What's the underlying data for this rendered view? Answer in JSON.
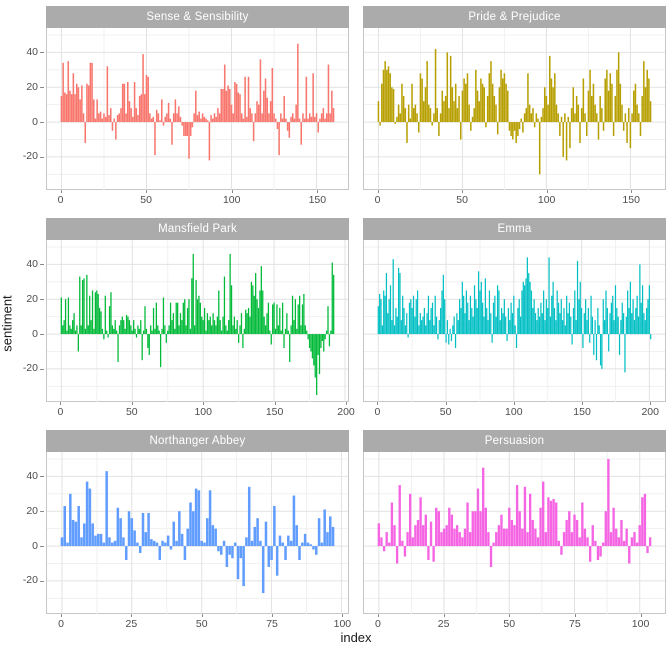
{
  "axes": {
    "x_title": "index",
    "y_title": "sentiment",
    "y_ticks": [
      -20,
      0,
      20,
      40
    ],
    "y_minor_ticks": [
      -30,
      -10,
      10,
      30,
      50
    ],
    "ylim": [
      -39,
      54
    ]
  },
  "style": {
    "strip_bg": "#ababab",
    "strip_text": "#ffffff",
    "panel_border": "#c6c6c6",
    "grid_major": "#e2e2e2",
    "grid_minor": "#f1f1f1",
    "tick_mark": "#8a8a8a",
    "tick_label": "#4d4d4d"
  },
  "chart_data": {
    "type": "bar",
    "facet_by": "book",
    "ncol": 2,
    "xlabel": "index",
    "ylabel": "sentiment",
    "legend": "none",
    "grid": "on",
    "facets": [
      {
        "title": "Sense & Sensibility",
        "color": "#F8766D",
        "x_ticks": [
          0,
          50,
          100,
          150
        ],
        "values": [
          15,
          34,
          17,
          16,
          35,
          18,
          16,
          28,
          16,
          22,
          20,
          13,
          21,
          5,
          -12,
          22,
          21,
          34,
          34,
          13,
          2,
          13,
          5,
          6,
          2,
          5,
          3,
          32,
          4,
          8,
          -5,
          2,
          -10,
          4,
          5,
          8,
          22,
          22,
          5,
          23,
          12,
          8,
          3,
          23,
          8,
          4,
          15,
          16,
          39,
          16,
          27,
          26,
          5,
          2,
          3,
          -19,
          7,
          5,
          1,
          13,
          -2,
          3,
          5,
          11,
          2,
          -13,
          5,
          13,
          5,
          9,
          3,
          -2,
          -8,
          -8,
          -8,
          -21,
          -8,
          -3,
          5,
          18,
          4,
          6,
          2,
          5,
          3,
          2,
          1,
          -22,
          4,
          2,
          5,
          3,
          8,
          5,
          19,
          19,
          33,
          18,
          21,
          19,
          10,
          5,
          23,
          22,
          17,
          16,
          5,
          2,
          26,
          3,
          26,
          8,
          5,
          -11,
          5,
          12,
          10,
          36,
          5,
          18,
          25,
          14,
          5,
          12,
          31,
          5,
          2,
          -4,
          -19,
          5,
          2,
          15,
          2,
          -5,
          -9,
          3,
          5,
          2,
          10,
          45,
          2,
          -13,
          5,
          2,
          26,
          2,
          5,
          3,
          28,
          3,
          5,
          -6,
          2,
          5,
          8,
          2,
          5,
          33,
          5,
          18,
          8
        ]
      },
      {
        "title": "Pride & Prejudice",
        "color": "#B79F00",
        "x_ticks": [
          0,
          50,
          100,
          150
        ],
        "values": [
          12,
          -2,
          22,
          30,
          35,
          30,
          32,
          28,
          20,
          19,
          -1,
          3,
          10,
          5,
          22,
          15,
          8,
          -12,
          10,
          2,
          22,
          8,
          10,
          5,
          -6,
          28,
          25,
          12,
          20,
          35,
          10,
          8,
          -2,
          5,
          42,
          8,
          -8,
          5,
          18,
          12,
          15,
          40,
          8,
          38,
          20,
          12,
          22,
          8,
          15,
          -10,
          18,
          25,
          22,
          28,
          10,
          -5,
          3,
          8,
          30,
          18,
          12,
          25,
          22,
          20,
          -3,
          15,
          28,
          35,
          22,
          15,
          10,
          -7,
          20,
          30,
          25,
          28,
          22,
          18,
          -5,
          -8,
          -10,
          -5,
          -12,
          -8,
          -4,
          2,
          -6,
          5,
          8,
          28,
          10,
          5,
          8,
          -3,
          5,
          2,
          -30,
          3,
          8,
          20,
          15,
          10,
          38,
          25,
          20,
          28,
          10,
          5,
          -8,
          3,
          -20,
          5,
          -22,
          3,
          -15,
          8,
          20,
          5,
          15,
          10,
          -12,
          8,
          25,
          5,
          -8,
          18,
          30,
          15,
          22,
          10,
          5,
          -10,
          15,
          8,
          -5,
          25,
          30,
          18,
          28,
          22,
          -8,
          15,
          30,
          40,
          22,
          10,
          -5,
          5,
          -12,
          8,
          -15,
          5,
          18,
          22,
          10,
          5,
          -8,
          15,
          35,
          20,
          30,
          25,
          12
        ]
      },
      {
        "title": "Mansfield Park",
        "color": "#00BA38",
        "x_ticks": [
          0,
          50,
          100,
          150,
          200
        ],
        "values": [
          21,
          5,
          8,
          20,
          2,
          21,
          5,
          3,
          8,
          12,
          2,
          5,
          -10,
          33,
          5,
          31,
          32,
          3,
          34,
          5,
          22,
          8,
          25,
          3,
          24,
          25,
          23,
          15,
          13,
          3,
          -3,
          22,
          2,
          -2,
          16,
          24,
          5,
          3,
          8,
          2,
          -16,
          5,
          8,
          10,
          8,
          3,
          11,
          10,
          8,
          5,
          2,
          8,
          3,
          -2,
          5,
          3,
          8,
          -15,
          2,
          16,
          3,
          -8,
          -12,
          5,
          2,
          15,
          3,
          18,
          5,
          2,
          -19,
          3,
          21,
          5,
          -5,
          2,
          5,
          18,
          8,
          12,
          3,
          18,
          18,
          5,
          12,
          8,
          18,
          20,
          5,
          15,
          20,
          3,
          32,
          46,
          5,
          31,
          20,
          22,
          18,
          10,
          8,
          15,
          2,
          12,
          8,
          10,
          5,
          12,
          8,
          5,
          10,
          25,
          8,
          2,
          10,
          33,
          5,
          2,
          8,
          46,
          28,
          5,
          10,
          3,
          8,
          -5,
          5,
          12,
          -8,
          3,
          14,
          12,
          15,
          10,
          30,
          28,
          22,
          35,
          20,
          15,
          25,
          39,
          25,
          10,
          5,
          12,
          18,
          2,
          -6,
          17,
          18,
          3,
          17,
          5,
          15,
          2,
          18,
          -8,
          3,
          12,
          2,
          -16,
          5,
          22,
          8,
          20,
          3,
          17,
          22,
          5,
          17,
          23,
          5,
          2,
          -3,
          -8,
          -10,
          -14,
          -18,
          -25,
          -35,
          -12,
          -23,
          -8,
          -4,
          -10,
          -3,
          2,
          16,
          -7,
          2,
          41,
          34
        ]
      },
      {
        "title": "Emma",
        "color": "#00BFC4",
        "x_ticks": [
          0,
          50,
          100,
          150,
          200
        ],
        "values": [
          16,
          23,
          20,
          5,
          25,
          22,
          35,
          12,
          20,
          28,
          8,
          43,
          5,
          15,
          10,
          38,
          35,
          8,
          22,
          15,
          5,
          12,
          -2,
          18,
          20,
          15,
          22,
          10,
          20,
          25,
          5,
          12,
          8,
          10,
          15,
          5,
          12,
          22,
          8,
          15,
          18,
          5,
          22,
          10,
          -3,
          8,
          15,
          25,
          34,
          20,
          -5,
          8,
          -6,
          3,
          -4,
          5,
          10,
          -8,
          12,
          8,
          20,
          15,
          30,
          22,
          12,
          25,
          18,
          8,
          22,
          15,
          10,
          28,
          20,
          15,
          36,
          25,
          30,
          18,
          10,
          32,
          15,
          8,
          25,
          12,
          -5,
          18,
          22,
          10,
          28,
          25,
          8,
          15,
          12,
          20,
          10,
          -4,
          15,
          8,
          18,
          12,
          22,
          5,
          -8,
          15,
          20,
          10,
          25,
          30,
          28,
          32,
          44,
          35,
          30,
          25,
          15,
          20,
          12,
          8,
          15,
          10,
          18,
          12,
          25,
          8,
          20,
          15,
          44,
          10,
          22,
          30,
          15,
          8,
          25,
          18,
          12,
          20,
          8,
          15,
          5,
          22,
          12,
          18,
          10,
          -6,
          15,
          25,
          8,
          42,
          20,
          30,
          15,
          -8,
          12,
          20,
          8,
          15,
          -5,
          22,
          10,
          -12,
          8,
          -15,
          15,
          5,
          -18,
          -20,
          20,
          8,
          25,
          15,
          -10,
          12,
          18,
          22,
          8,
          28,
          15,
          10,
          -12,
          8,
          18,
          12,
          -22,
          10,
          25,
          15,
          30,
          12,
          20,
          8,
          15,
          22,
          10,
          40,
          18,
          28,
          12,
          8,
          15,
          20,
          28,
          -3
        ]
      },
      {
        "title": "Northanger Abbey",
        "color": "#619CFF",
        "x_ticks": [
          0,
          25,
          50,
          75,
          100
        ],
        "values": [
          5,
          23,
          2,
          30,
          15,
          14,
          23,
          5,
          13,
          37,
          33,
          13,
          6,
          7,
          7,
          2,
          43,
          5,
          2,
          3,
          22,
          16,
          5,
          -8,
          20,
          16,
          9,
          2,
          -4,
          19,
          8,
          19,
          4,
          3,
          2,
          -8,
          3,
          2,
          6,
          -2,
          14,
          3,
          20,
          7,
          -8,
          10,
          25,
          20,
          33,
          32,
          3,
          2,
          16,
          32,
          12,
          10,
          -3,
          -5,
          3,
          -12,
          -5,
          -7,
          2,
          -19,
          -7,
          -23,
          5,
          34,
          3,
          11,
          16,
          3,
          -27,
          14,
          -12,
          -8,
          23,
          -17,
          6,
          2,
          -8,
          6,
          3,
          29,
          12,
          -8,
          2,
          7,
          2,
          1,
          -2,
          -5,
          16,
          2,
          21,
          8,
          17,
          11
        ]
      },
      {
        "title": "Persuasion",
        "color": "#F564E3",
        "x_ticks": [
          0,
          25,
          50,
          75,
          100
        ],
        "values": [
          13,
          5,
          -3,
          8,
          2,
          25,
          12,
          -10,
          35,
          3,
          -6,
          8,
          30,
          5,
          12,
          15,
          28,
          12,
          18,
          -8,
          14,
          -9,
          22,
          20,
          8,
          10,
          12,
          22,
          18,
          10,
          12,
          8,
          5,
          10,
          25,
          8,
          20,
          20,
          33,
          20,
          45,
          22,
          8,
          -12,
          2,
          8,
          12,
          18,
          10,
          10,
          22,
          15,
          12,
          35,
          20,
          10,
          34,
          8,
          30,
          15,
          10,
          5,
          22,
          37,
          8,
          28,
          26,
          27,
          25,
          3,
          -5,
          8,
          15,
          20,
          8,
          18,
          15,
          5,
          25,
          10,
          5,
          -9,
          12,
          3,
          -8,
          -6,
          2,
          20,
          50,
          8,
          22,
          10,
          5,
          15,
          3,
          10,
          -10,
          5,
          8,
          2,
          12,
          28,
          30,
          -4,
          5
        ]
      }
    ]
  }
}
